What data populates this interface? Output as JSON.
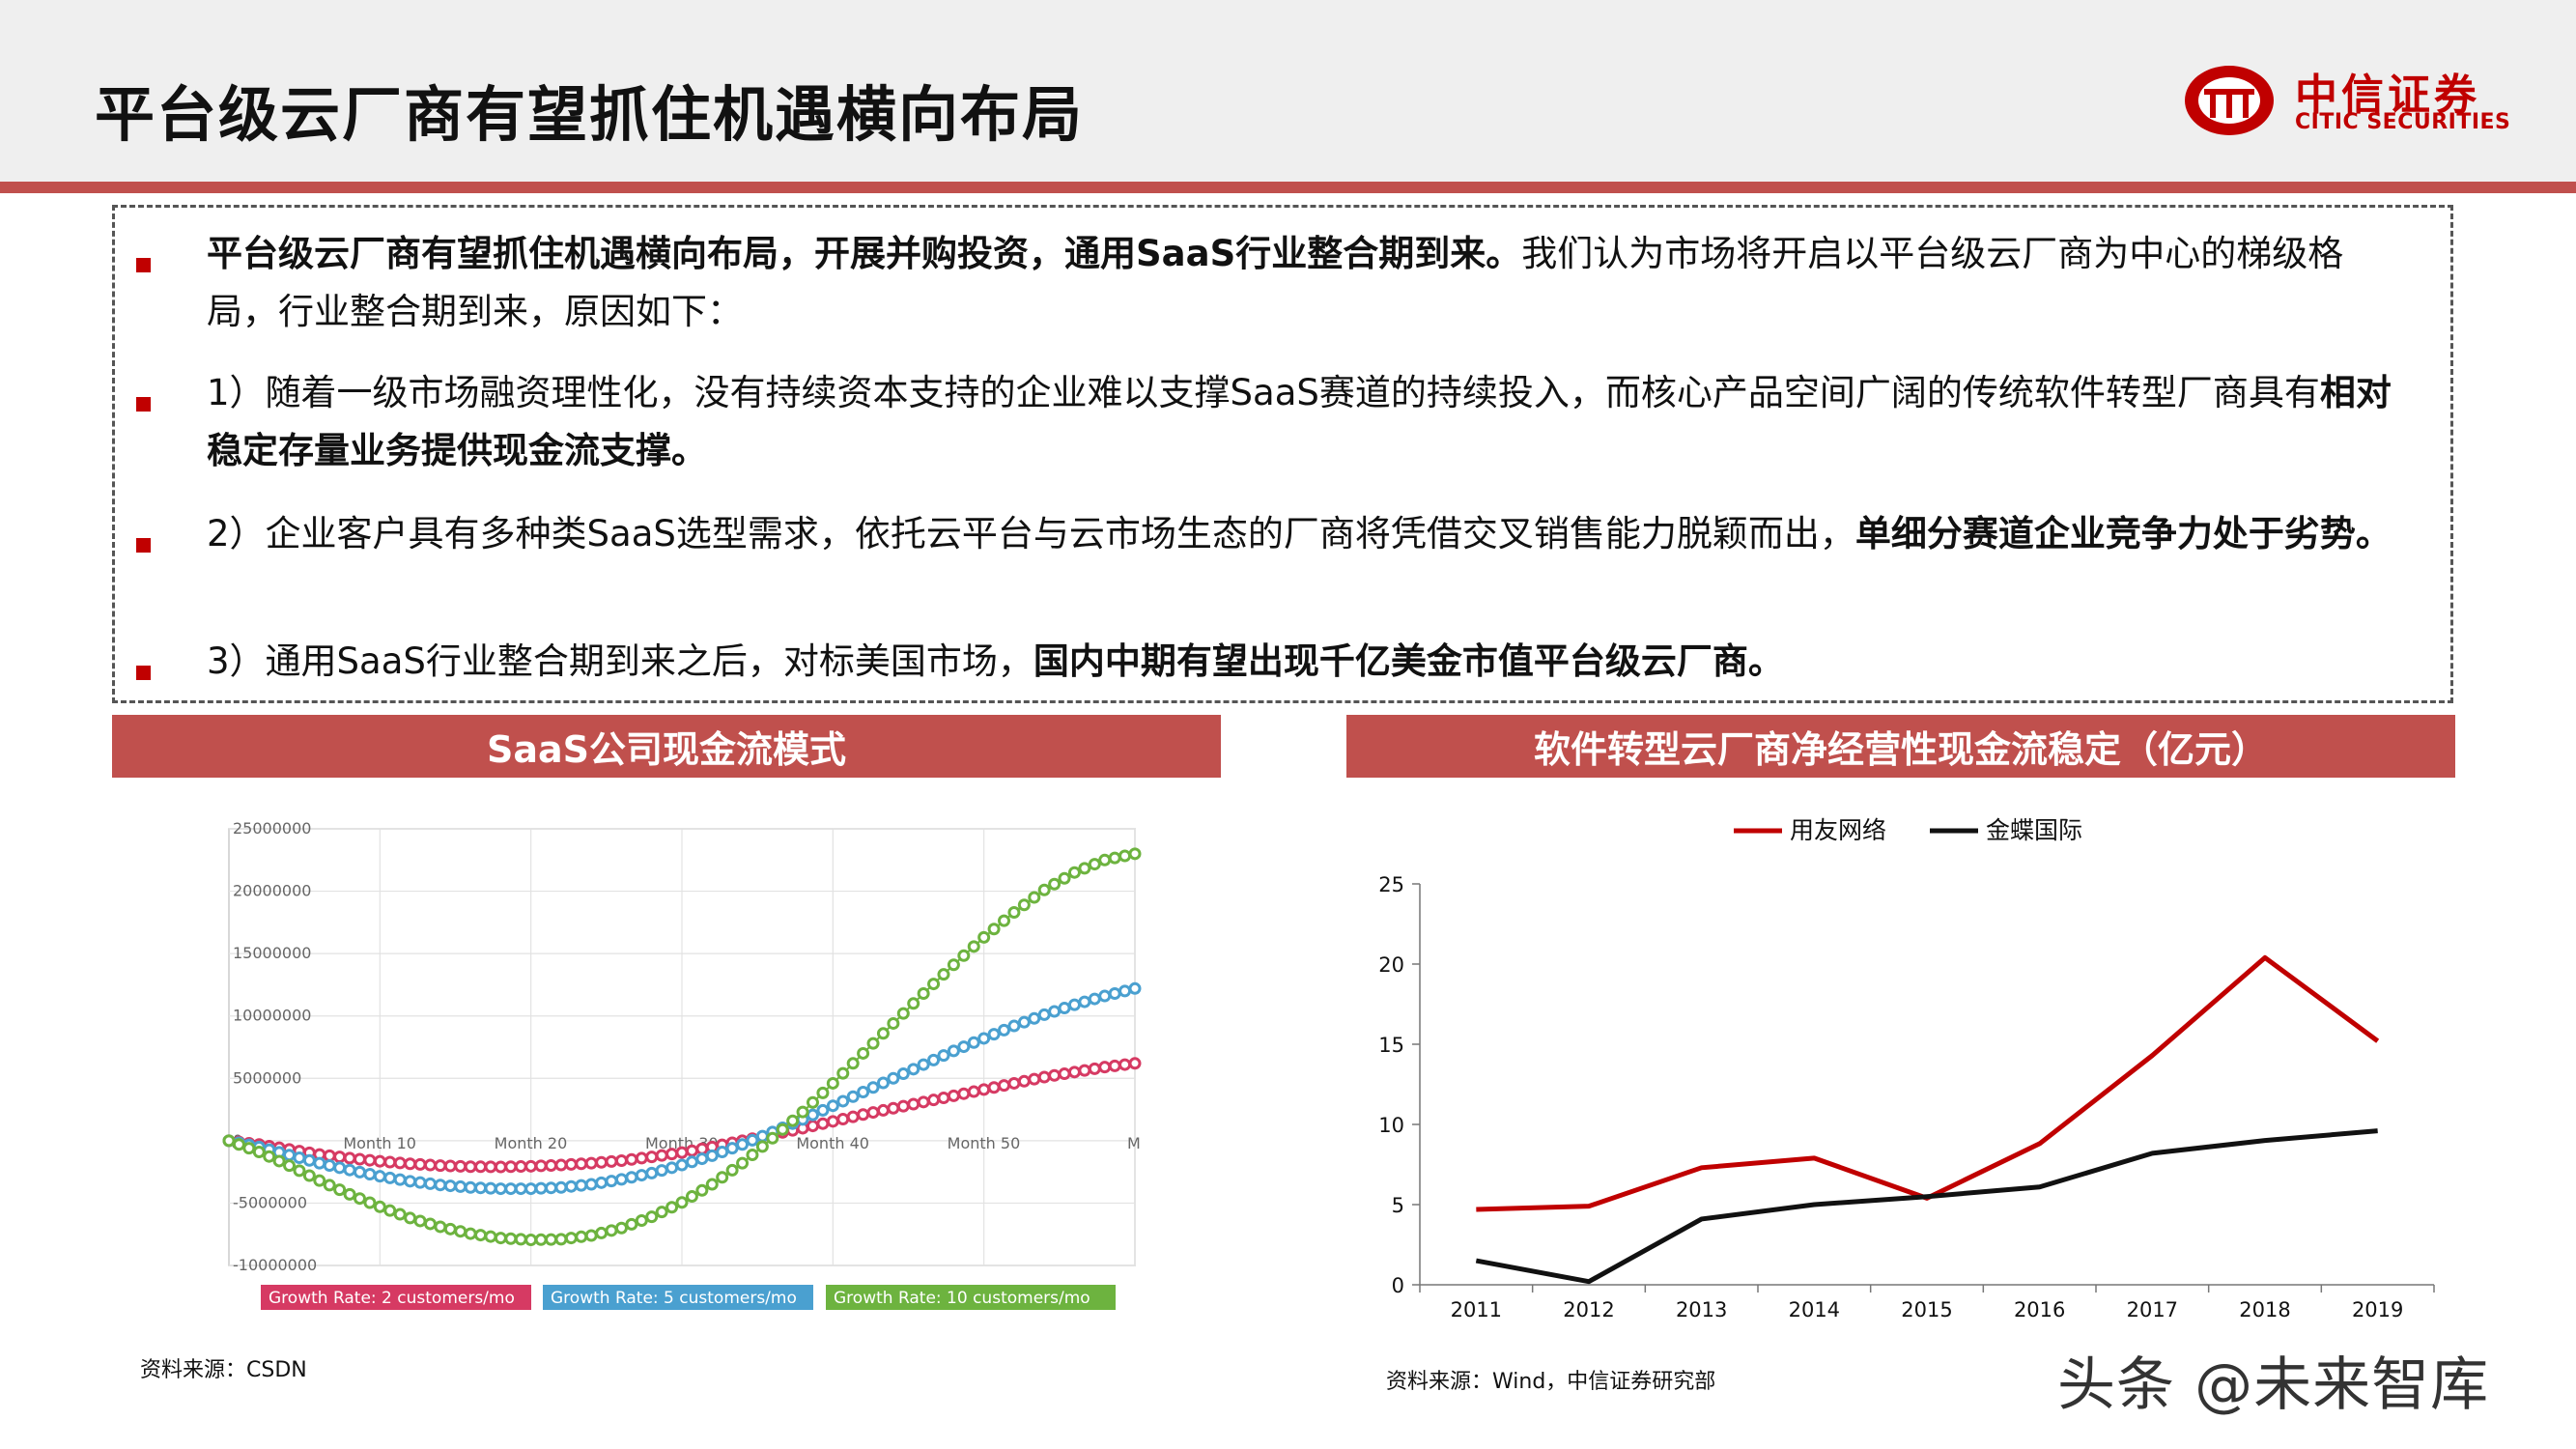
{
  "header": {
    "title": "平台级云厂商有望抓住机遇横向布局",
    "logo_cn": "中信证券",
    "logo_en": "CITIC SECURITIES"
  },
  "bullets": [
    {
      "bold": "平台级云厂商有望抓住机遇横向布局，开展并购投资，通用SaaS行业整合期到来。",
      "rest": "我们认为市场将开启以平台级云厂商为中心的梯级格局，行业整合期到来，原因如下："
    },
    {
      "plain": "1）随着一级市场融资理性化，没有持续资本支持的企业难以支撑SaaS赛道的持续投入，而核心产品空间广阔的传统软件转型厂商具有",
      "bold": "相对稳定存量业务提供现金流支撑。"
    },
    {
      "plain": "2）企业客户具有多种类SaaS选型需求，依托云平台与云市场生态的厂商将凭借交叉销售能力脱颖而出，",
      "bold": "单细分赛道企业竞争力处于劣势。"
    },
    {
      "plain": "3）通用SaaS行业整合期到来之后，对标美国市场，",
      "bold": "国内中期有望出现千亿美金市值平台级云厂商。"
    }
  ],
  "left_panel": {
    "heading": "SaaS公司现金流模式",
    "source": "资料来源：CSDN"
  },
  "right_panel": {
    "heading": "软件转型云厂商净经营性现金流稳定（亿元）",
    "source": "资料来源：Wind，中信证券研究部"
  },
  "watermark": "头条 @未来智库",
  "colors": {
    "accent": "#c0504d",
    "brand_red": "#c00000",
    "series_red": "#c00000",
    "series_black": "#111111",
    "pink": "#d63a63",
    "blue": "#4aa0d0",
    "green": "#6db33f"
  },
  "chart_data": [
    {
      "type": "line",
      "x": [
        0,
        2,
        4,
        6,
        8,
        10,
        12,
        14,
        16,
        18,
        20,
        22,
        24,
        26,
        28,
        30,
        32,
        34,
        36,
        38,
        40,
        42,
        44,
        46,
        48,
        50,
        52,
        54,
        56,
        58,
        60
      ],
      "yticks": [
        "25000000",
        "20000000",
        "15000000",
        "10000000",
        "5000000",
        "0",
        "-5000000",
        "-10000000"
      ],
      "xticks": [
        "Month 10",
        "Month 20",
        "Month 30",
        "Month 40",
        "Month 50",
        "M"
      ],
      "ylim": [
        -10000000,
        25000000
      ],
      "series": [
        {
          "name": "Growth Rate: 2 customers/mo",
          "values": [
            0,
            -300000,
            -700000,
            -1100000,
            -1400000,
            -1650000,
            -1850000,
            -2000000,
            -2080000,
            -2100000,
            -2050000,
            -1950000,
            -1800000,
            -1600000,
            -1300000,
            -950000,
            -500000,
            0,
            500000,
            1000000,
            1550000,
            2100000,
            2600000,
            3100000,
            3600000,
            4100000,
            4600000,
            5100000,
            5500000,
            5900000,
            6200000
          ]
        },
        {
          "name": "Growth Rate: 5 customers/mo",
          "values": [
            0,
            -500000,
            -1150000,
            -1800000,
            -2350000,
            -2850000,
            -3250000,
            -3550000,
            -3750000,
            -3850000,
            -3850000,
            -3750000,
            -3500000,
            -3100000,
            -2600000,
            -1950000,
            -1200000,
            -300000,
            700000,
            1700000,
            2800000,
            3900000,
            5000000,
            6100000,
            7200000,
            8200000,
            9200000,
            10100000,
            10900000,
            11600000,
            12200000
          ]
        },
        {
          "name": "Growth Rate: 10 customers/mo",
          "values": [
            0,
            -900000,
            -2000000,
            -3200000,
            -4300000,
            -5300000,
            -6200000,
            -6900000,
            -7450000,
            -7800000,
            -7950000,
            -7900000,
            -7600000,
            -7000000,
            -6100000,
            -4950000,
            -3500000,
            -1800000,
            200000,
            2300000,
            4600000,
            7000000,
            9400000,
            11800000,
            14100000,
            16300000,
            18300000,
            20100000,
            21500000,
            22500000,
            23000000
          ]
        }
      ]
    },
    {
      "type": "line",
      "categories": [
        "2011",
        "2012",
        "2013",
        "2014",
        "2015",
        "2016",
        "2017",
        "2018",
        "2019"
      ],
      "ylim": [
        0,
        25
      ],
      "yticks": [
        "0",
        "5",
        "10",
        "15",
        "20",
        "25"
      ],
      "series": [
        {
          "name": "用友网络",
          "values": [
            4.7,
            4.9,
            7.3,
            7.9,
            5.4,
            8.8,
            14.3,
            20.4,
            15.2
          ]
        },
        {
          "name": "金蝶国际",
          "values": [
            1.5,
            0.2,
            4.1,
            5.0,
            5.5,
            6.1,
            8.2,
            9.0,
            9.6
          ]
        }
      ]
    }
  ]
}
